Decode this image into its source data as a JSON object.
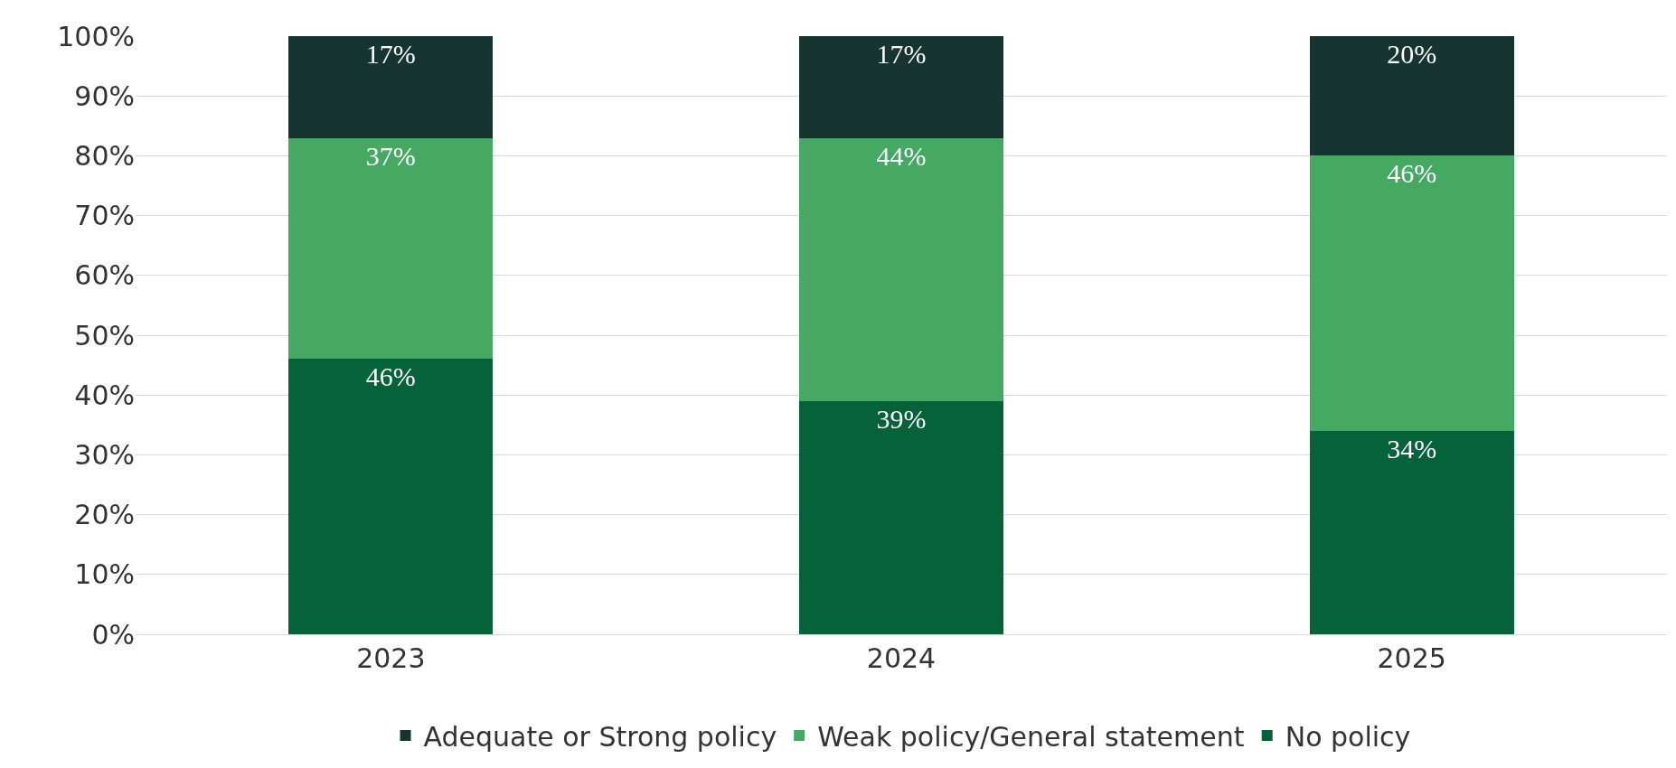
{
  "chart_data": {
    "type": "bar",
    "stacked": true,
    "categories": [
      "2023",
      "2024",
      "2025"
    ],
    "series": [
      {
        "name": "No policy",
        "color": "#06623b",
        "values": [
          46,
          39,
          34
        ],
        "value_labels": [
          "46%",
          "39%",
          "34%"
        ]
      },
      {
        "name": "Weak policy/General statement",
        "color": "#46a963",
        "values": [
          37,
          44,
          46
        ],
        "value_labels": [
          "37%",
          "44%",
          "46%"
        ]
      },
      {
        "name": "Adequate or Strong policy",
        "color": "#163530",
        "values": [
          17,
          17,
          20
        ],
        "value_labels": [
          "17%",
          "17%",
          "20%"
        ]
      }
    ],
    "ylim": [
      0,
      100
    ],
    "yticks": [
      {
        "value": 0,
        "label": "0%"
      },
      {
        "value": 10,
        "label": "10%"
      },
      {
        "value": 20,
        "label": "20%"
      },
      {
        "value": 30,
        "label": "30%"
      },
      {
        "value": 40,
        "label": "40%"
      },
      {
        "value": 50,
        "label": "50%"
      },
      {
        "value": 60,
        "label": "60%"
      },
      {
        "value": 70,
        "label": "70%"
      },
      {
        "value": 80,
        "label": "80%"
      },
      {
        "value": 90,
        "label": "90%"
      },
      {
        "value": 100,
        "label": "100%"
      }
    ],
    "grid": "y",
    "legend": "bottom"
  }
}
